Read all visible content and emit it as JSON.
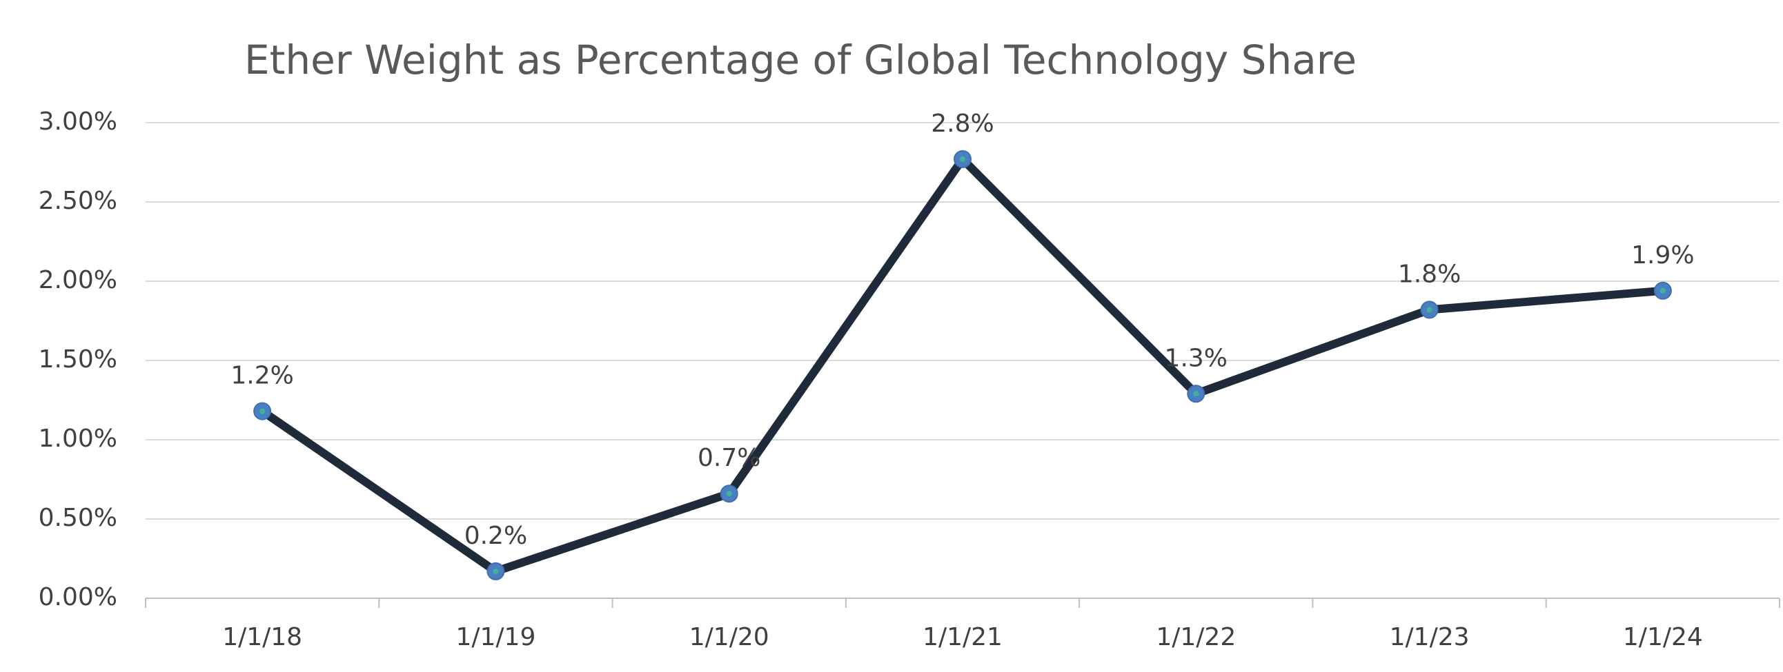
{
  "chart_data": {
    "type": "line",
    "title": "Ether Weight as Percentage of Global Technology Share",
    "categories": [
      "1/1/18",
      "1/1/19",
      "1/1/20",
      "1/1/21",
      "1/1/22",
      "1/1/23",
      "1/1/24"
    ],
    "series": [
      {
        "color": "#1f2a3a",
        "marker_color": "#4a7fc1",
        "values": [
          1.18,
          0.17,
          0.66,
          2.77,
          1.29,
          1.82,
          1.94
        ],
        "value_labels": [
          "1.2%",
          "0.2%",
          "0.7%",
          "2.8%",
          "1.3%",
          "1.8%",
          "1.9%"
        ]
      }
    ],
    "ylim": [
      0,
      3
    ],
    "yticks": [
      {
        "value": 0,
        "label": "0.00%"
      },
      {
        "value": 0.5,
        "label": "0.50%"
      },
      {
        "value": 1,
        "label": "1.00%"
      },
      {
        "value": 1.5,
        "label": "1.50%"
      },
      {
        "value": 2,
        "label": "2.00%"
      },
      {
        "value": 2.5,
        "label": "2.50%"
      },
      {
        "value": 3,
        "label": "3.00%"
      }
    ],
    "grid": true
  }
}
